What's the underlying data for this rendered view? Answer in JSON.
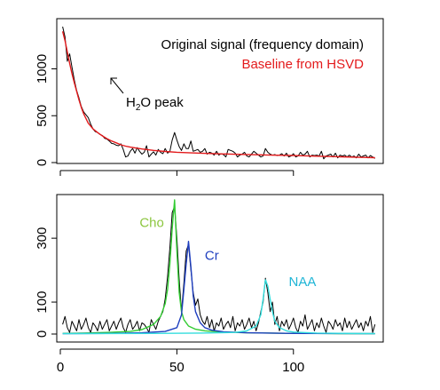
{
  "chart_data": [
    {
      "type": "line",
      "xlim": [
        0,
        137
      ],
      "ylim": [
        0,
        1450
      ],
      "y_ticks": [
        "0",
        "500",
        "1000"
      ],
      "x_ticks": [
        0,
        50,
        100
      ],
      "x_tick_labels_shown": false,
      "grid": false,
      "legend": {
        "position": "top-right",
        "entries": [
          {
            "label": "Original signal (frequency domain)",
            "color": "#000000"
          },
          {
            "label": "Baseline from HSVD",
            "color": "#e31a1c"
          }
        ]
      },
      "annotation": {
        "prefix": "H",
        "subscript": "2",
        "suffix": "O peak",
        "x": 15,
        "y": 720,
        "arrow_to": [
          14,
          930
        ]
      },
      "series": [
        {
          "name": "Original signal (frequency domain)",
          "color": "#000000",
          "x": [
            1,
            2,
            3,
            4,
            5,
            6,
            7,
            8,
            9,
            10,
            11,
            12,
            13,
            14,
            15,
            16,
            17,
            18,
            19,
            20,
            21,
            22,
            23,
            24,
            25,
            26,
            27,
            28,
            29,
            30,
            31,
            32,
            33,
            34,
            35,
            36,
            37,
            38,
            39,
            40,
            41,
            42,
            43,
            44,
            45,
            46,
            47,
            48,
            49,
            50,
            51,
            52,
            53,
            54,
            55,
            56,
            57,
            58,
            59,
            60,
            61,
            62,
            63,
            64,
            65,
            66,
            67,
            68,
            69,
            70,
            71,
            72,
            73,
            74,
            75,
            76,
            77,
            78,
            79,
            80,
            81,
            82,
            83,
            84,
            85,
            86,
            87,
            88,
            89,
            90,
            91,
            92,
            93,
            94,
            95,
            96,
            97,
            98,
            99,
            100,
            101,
            102,
            103,
            104,
            105,
            106,
            107,
            108,
            109,
            110,
            111,
            112,
            113,
            114,
            115,
            116,
            117,
            118,
            119,
            120,
            121,
            122,
            123,
            124,
            125,
            126,
            127,
            128,
            129,
            130,
            131,
            132,
            133,
            134,
            135
          ],
          "y": [
            1450,
            1340,
            1080,
            1160,
            1020,
            880,
            770,
            690,
            600,
            540,
            510,
            480,
            410,
            360,
            330,
            320,
            300,
            290,
            260,
            250,
            230,
            205,
            200,
            185,
            180,
            200,
            140,
            60,
            70,
            120,
            150,
            100,
            160,
            120,
            90,
            110,
            180,
            60,
            90,
            115,
            80,
            140,
            110,
            95,
            150,
            100,
            120,
            240,
            320,
            240,
            170,
            130,
            200,
            150,
            150,
            230,
            120,
            130,
            140,
            110,
            120,
            150,
            90,
            110,
            100,
            80,
            120,
            80,
            95,
            85,
            60,
            140,
            130,
            120,
            100,
            60,
            80,
            90,
            110,
            70,
            60,
            90,
            120,
            100,
            80,
            60,
            70,
            150,
            110,
            90,
            80,
            85,
            75,
            80,
            95,
            70,
            100,
            60,
            70,
            95,
            60,
            70,
            110,
            80,
            90,
            120,
            60,
            80,
            75,
            80,
            70,
            120,
            40,
            70,
            80,
            90,
            60,
            100,
            50,
            80,
            70,
            80,
            60,
            80,
            60,
            70,
            50,
            90,
            60,
            70,
            80,
            50,
            75,
            60,
            45
          ]
        },
        {
          "name": "Baseline from HSVD",
          "color": "#e31a1c",
          "x": [
            1,
            2,
            3,
            4,
            5,
            6,
            7,
            8,
            9,
            10,
            12,
            14,
            16,
            18,
            20,
            22,
            24,
            26,
            28,
            30,
            35,
            40,
            45,
            50,
            60,
            70,
            80,
            90,
            100,
            110,
            120,
            130,
            135
          ],
          "y": [
            1400,
            1300,
            1180,
            1060,
            950,
            850,
            760,
            670,
            590,
            520,
            420,
            360,
            320,
            285,
            255,
            230,
            210,
            190,
            175,
            165,
            145,
            130,
            118,
            110,
            100,
            92,
            86,
            80,
            75,
            68,
            62,
            55,
            52
          ]
        }
      ]
    },
    {
      "type": "line",
      "xlim": [
        0,
        137
      ],
      "ylim": [
        0,
        420
      ],
      "y_ticks": [
        "0",
        "100",
        "300"
      ],
      "x_ticks": [
        "0",
        "50",
        "100"
      ],
      "grid": false,
      "labels": [
        {
          "text": "Cho",
          "x": 34,
          "y": 335,
          "color": "#8cc63f"
        },
        {
          "text": "Cr",
          "x": 62,
          "y": 232,
          "color": "#1f3fbf"
        },
        {
          "text": "NAA",
          "x": 98,
          "y": 150,
          "color": "#1fb5d6"
        }
      ],
      "series": [
        {
          "name": "Original signal",
          "color": "#000000",
          "x": [
            1,
            2,
            3,
            4,
            5,
            6,
            7,
            8,
            9,
            10,
            11,
            12,
            13,
            14,
            15,
            16,
            17,
            18,
            19,
            20,
            21,
            22,
            23,
            24,
            25,
            26,
            27,
            28,
            29,
            30,
            31,
            32,
            33,
            34,
            35,
            36,
            37,
            38,
            39,
            40,
            41,
            42,
            43,
            44,
            45,
            46,
            47,
            48,
            49,
            50,
            51,
            52,
            53,
            54,
            55,
            56,
            57,
            58,
            59,
            60,
            61,
            62,
            63,
            64,
            65,
            66,
            67,
            68,
            69,
            70,
            71,
            72,
            73,
            74,
            75,
            76,
            77,
            78,
            79,
            80,
            81,
            82,
            83,
            84,
            85,
            86,
            87,
            88,
            89,
            90,
            91,
            92,
            93,
            94,
            95,
            96,
            97,
            98,
            99,
            100,
            101,
            102,
            103,
            104,
            105,
            106,
            107,
            108,
            109,
            110,
            111,
            112,
            113,
            114,
            115,
            116,
            117,
            118,
            119,
            120,
            121,
            122,
            123,
            124,
            125,
            126,
            127,
            128,
            129,
            130,
            131,
            132,
            133,
            134,
            135
          ],
          "y": [
            30,
            55,
            20,
            5,
            40,
            25,
            10,
            45,
            15,
            30,
            50,
            20,
            5,
            35,
            25,
            10,
            40,
            15,
            30,
            45,
            10,
            25,
            40,
            15,
            35,
            50,
            20,
            5,
            30,
            45,
            15,
            25,
            40,
            10,
            35,
            30,
            20,
            5,
            45,
            30,
            15,
            40,
            55,
            70,
            110,
            180,
            270,
            380,
            400,
            300,
            170,
            70,
            160,
            260,
            280,
            200,
            130,
            90,
            110,
            60,
            40,
            30,
            55,
            20,
            45,
            10,
            35,
            25,
            50,
            15,
            30,
            40,
            20,
            55,
            10,
            35,
            25,
            45,
            15,
            30,
            50,
            20,
            40,
            10,
            35,
            70,
            100,
            175,
            130,
            70,
            100,
            30,
            55,
            10,
            40,
            25,
            45,
            15,
            30,
            50,
            20,
            5,
            40,
            25,
            60,
            15,
            30,
            45,
            10,
            35,
            20,
            50,
            25,
            5,
            40,
            30,
            15,
            45,
            25,
            35,
            10,
            50,
            20,
            40,
            15,
            30,
            45,
            20,
            35,
            10,
            40,
            25,
            55,
            5,
            30
          ]
        },
        {
          "name": "Cho",
          "color": "#33cc33",
          "x": [
            1,
            10,
            20,
            30,
            35,
            40,
            43,
            45,
            46,
            47,
            48,
            49,
            50,
            51,
            52,
            53,
            55,
            58,
            62,
            70,
            80,
            90,
            100,
            110,
            120,
            135
          ],
          "y": [
            2,
            3,
            5,
            8,
            14,
            30,
            55,
            95,
            140,
            220,
            330,
            420,
            260,
            130,
            70,
            45,
            25,
            15,
            10,
            6,
            4,
            3,
            2,
            2,
            1,
            1
          ]
        },
        {
          "name": "Cr",
          "color": "#1f3fbf",
          "x": [
            1,
            20,
            35,
            45,
            50,
            52,
            53,
            54,
            55,
            56,
            57,
            58,
            60,
            62,
            65,
            70,
            80,
            100,
            135
          ],
          "y": [
            1,
            2,
            4,
            8,
            20,
            60,
            140,
            220,
            290,
            210,
            120,
            70,
            35,
            20,
            12,
            7,
            4,
            2,
            1
          ]
        },
        {
          "name": "NAA",
          "color": "#33dddd",
          "x": [
            1,
            40,
            60,
            75,
            80,
            84,
            86,
            87,
            88,
            89,
            90,
            91,
            92,
            94,
            97,
            100,
            110,
            135
          ],
          "y": [
            1,
            2,
            3,
            5,
            10,
            25,
            60,
            110,
            170,
            150,
            110,
            70,
            40,
            20,
            10,
            6,
            3,
            1
          ]
        }
      ]
    }
  ]
}
